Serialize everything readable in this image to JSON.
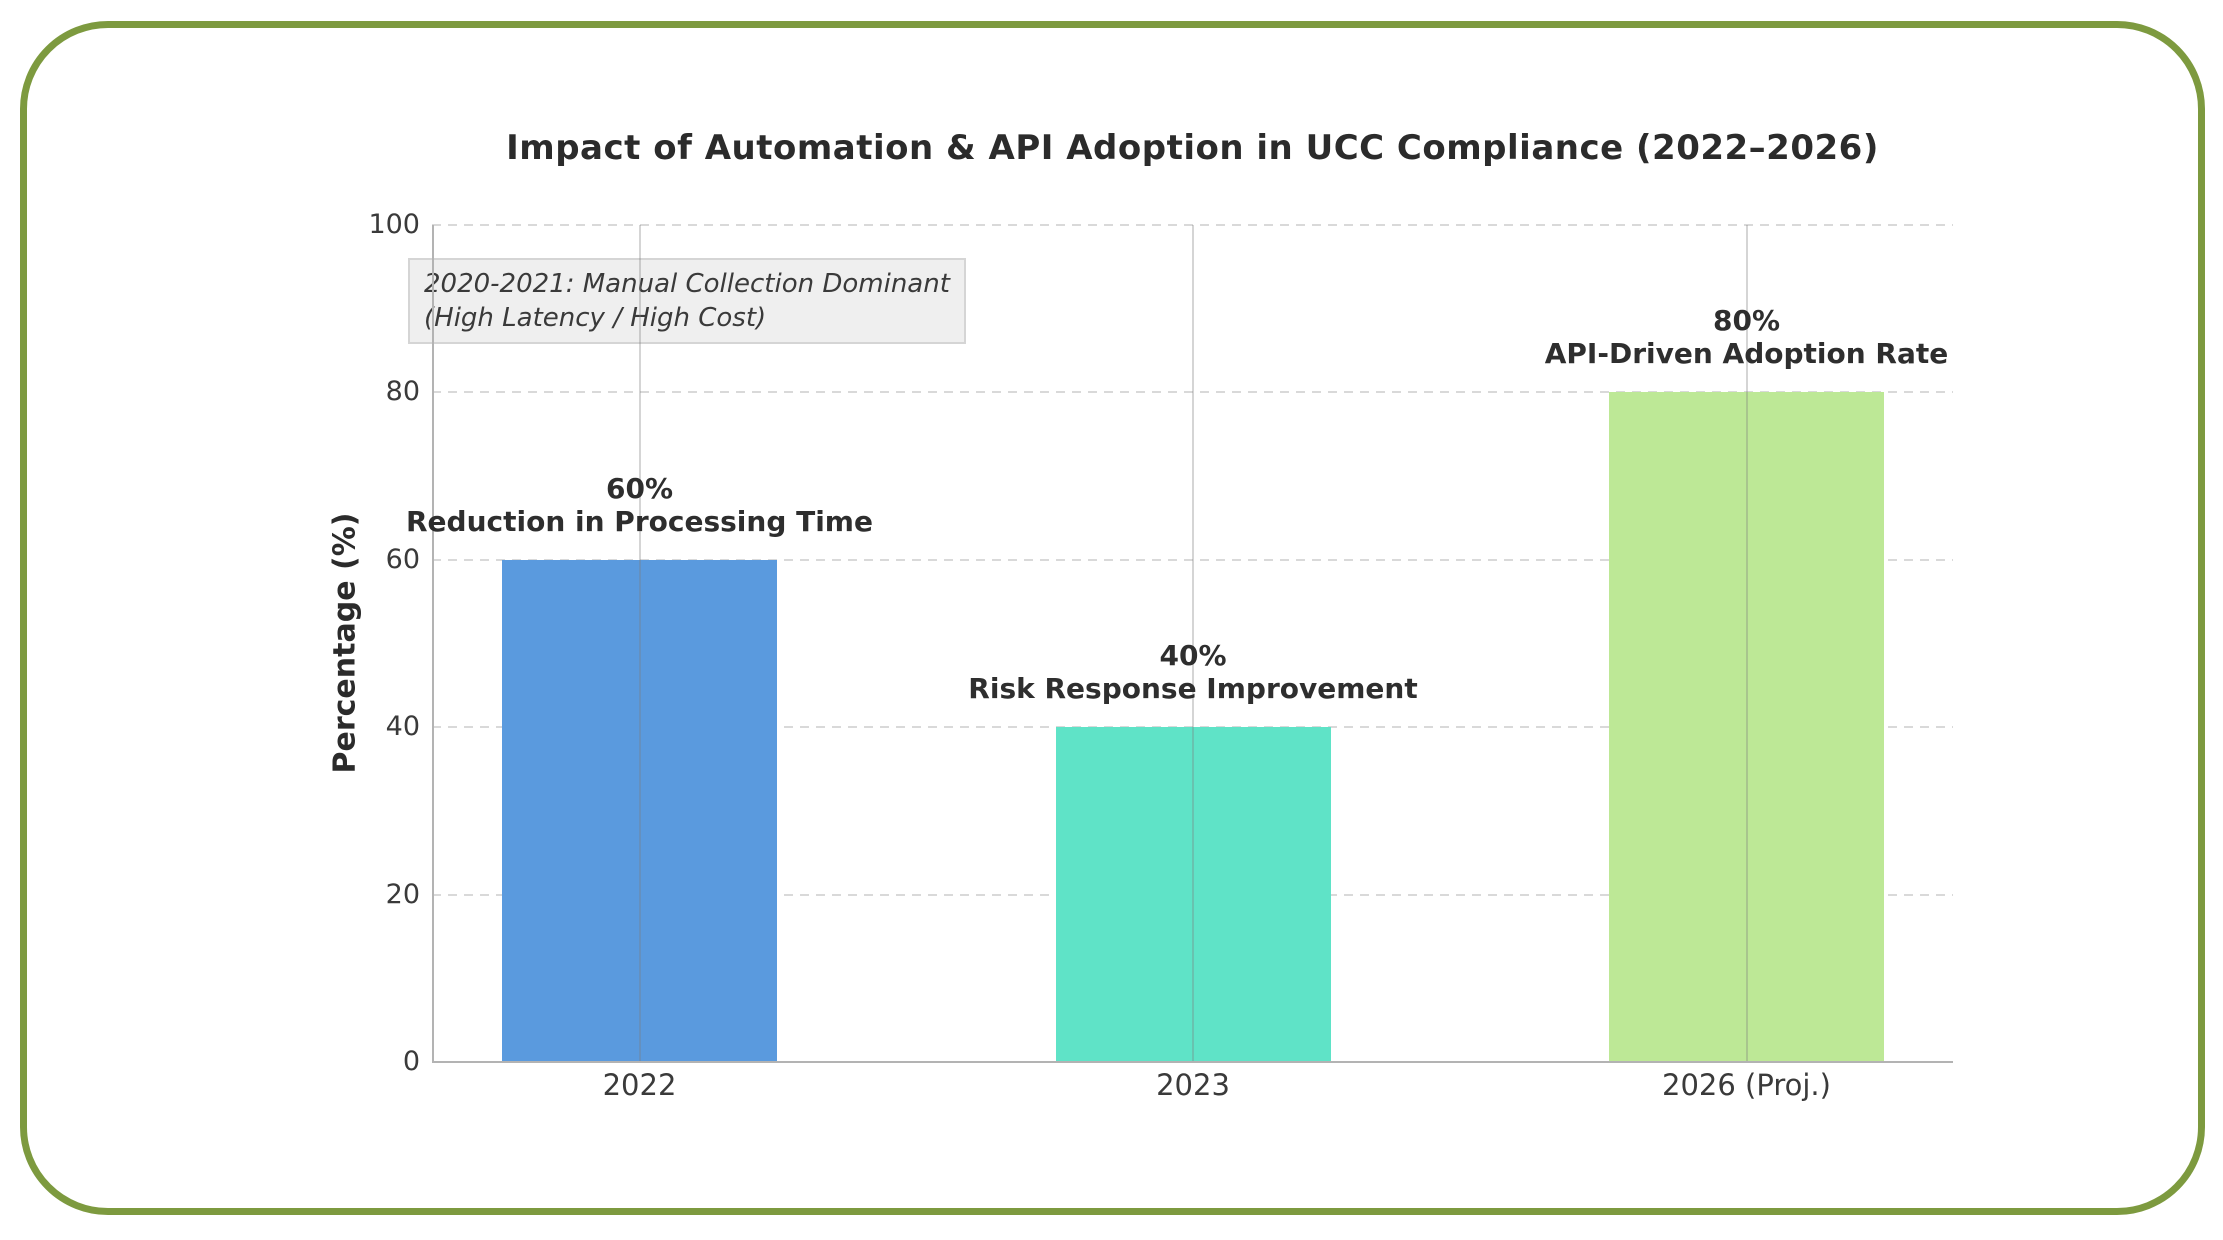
{
  "page": {
    "background": "#ffffff",
    "frame_border_color": "#7d9a3f"
  },
  "chart_data": {
    "type": "bar",
    "title": "Impact of Automation & API Adoption in UCC Compliance (2022–2026)",
    "categories": [
      "2022",
      "2023",
      "2026 (Proj.)"
    ],
    "values": [
      60,
      40,
      80
    ],
    "bar_value_labels": [
      "60%",
      "40%",
      "80%"
    ],
    "bar_descriptions": [
      "Reduction in Processing Time",
      "Risk Response Improvement",
      "API-Driven Adoption Rate"
    ],
    "bar_colors": [
      "#5a9ade",
      "#5fe3c7",
      "#bde896"
    ],
    "xlabel": "",
    "ylabel": "Percentage (%)",
    "ylim": [
      0,
      100
    ],
    "yticks": [
      0,
      20,
      40,
      60,
      80,
      100
    ],
    "grid": {
      "horizontal": "dashed",
      "vertical": "solid at category centers",
      "color_horizontal": "#d9d9d9",
      "color_vertical": "#c4c4c4"
    },
    "legend": false,
    "annotation": {
      "line1": "2020-2021: Manual Collection Dominant",
      "line2": "(High Latency / High Cost)"
    }
  }
}
